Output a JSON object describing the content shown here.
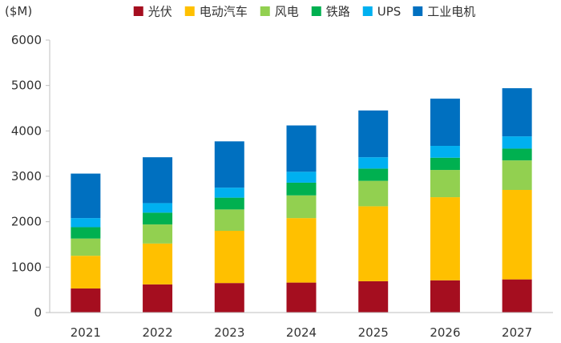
{
  "chart_data": {
    "type": "bar",
    "stacked": true,
    "title": "",
    "xlabel": "",
    "ylabel": "($M)",
    "ylim": [
      0,
      6000
    ],
    "yticks": [
      0,
      1000,
      2000,
      3000,
      4000,
      5000,
      6000
    ],
    "grid": false,
    "legend_position": "top",
    "categories": [
      "2021",
      "2022",
      "2023",
      "2024",
      "2025",
      "2026",
      "2027"
    ],
    "series": [
      {
        "name": "光伏",
        "color": "#A50E1F",
        "values": [
          530,
          620,
          650,
          660,
          690,
          710,
          730
        ]
      },
      {
        "name": "电动汽车",
        "color": "#FFC000",
        "values": [
          720,
          900,
          1150,
          1420,
          1650,
          1830,
          1970
        ]
      },
      {
        "name": "风电",
        "color": "#92D050",
        "values": [
          380,
          420,
          470,
          500,
          560,
          600,
          650
        ]
      },
      {
        "name": "铁路",
        "color": "#00B050",
        "values": [
          250,
          260,
          260,
          280,
          270,
          270,
          260
        ]
      },
      {
        "name": "UPS",
        "color": "#00B0F0",
        "values": [
          200,
          210,
          220,
          240,
          250,
          260,
          270
        ]
      },
      {
        "name": "工业电机",
        "color": "#0070C0",
        "values": [
          980,
          1010,
          1020,
          1020,
          1030,
          1040,
          1060
        ]
      }
    ]
  }
}
